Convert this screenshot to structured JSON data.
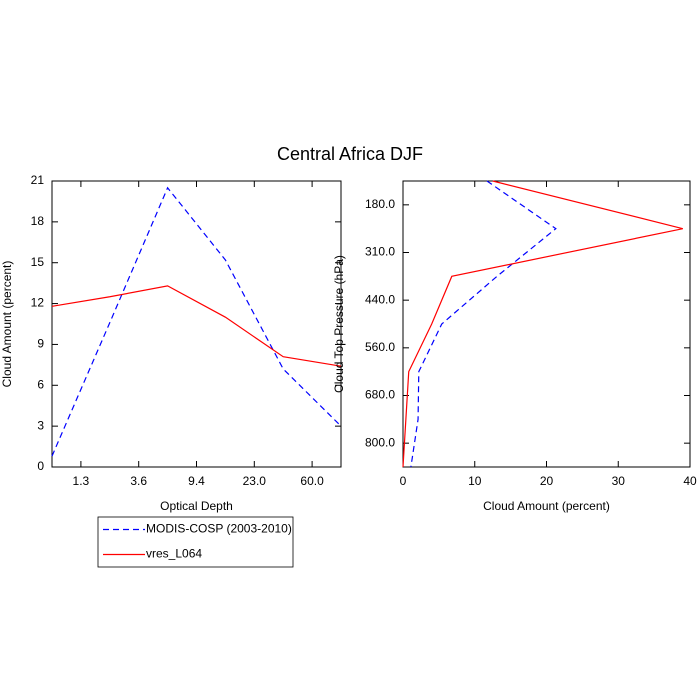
{
  "title": "Central Africa DJF",
  "chart_data": [
    {
      "type": "line",
      "orientation": "vertical",
      "x_label": "Optical Depth",
      "y_label": "Cloud Amount (percent)",
      "x": [
        0,
        1,
        2,
        3,
        4,
        5
      ],
      "xlim": [
        0,
        5
      ],
      "xticks": [
        {
          "value": 0.5,
          "label": "1.3"
        },
        {
          "value": 1.5,
          "label": "3.6"
        },
        {
          "value": 2.5,
          "label": "9.4"
        },
        {
          "value": 3.5,
          "label": "23.0"
        },
        {
          "value": 4.5,
          "label": "60.0"
        }
      ],
      "ylim": [
        0,
        21
      ],
      "yticks": [
        0,
        3,
        6,
        9,
        12,
        15,
        18,
        21
      ],
      "series": [
        {
          "name": "MODIS-COSP (2003-2010)",
          "color": "#0000ff",
          "line_style": "dashed",
          "values": [
            0.8,
            10.6,
            20.5,
            15.2,
            7.2,
            3.0
          ]
        },
        {
          "name": "vres_L064",
          "color": "#ff0000",
          "line_style": "solid",
          "values": [
            11.8,
            12.5,
            13.3,
            11.0,
            8.1,
            7.4
          ]
        }
      ]
    },
    {
      "type": "line",
      "orientation": "horizontal",
      "x_label": "Cloud Amount (percent)",
      "y_label": "Cloud Top Pressure (hPa)",
      "levels": [
        0,
        1,
        2,
        3,
        4,
        5,
        6
      ],
      "xlim": [
        0,
        40
      ],
      "xticks": [
        0,
        10,
        20,
        30,
        40
      ],
      "ylim": [
        0,
        6
      ],
      "y_reversed": true,
      "yticks": [
        {
          "value": 0.5,
          "label": "180.0"
        },
        {
          "value": 1.5,
          "label": "310.0"
        },
        {
          "value": 2.5,
          "label": "440.0"
        },
        {
          "value": 3.5,
          "label": "560.0"
        },
        {
          "value": 4.5,
          "label": "680.0"
        },
        {
          "value": 5.5,
          "label": "800.0"
        }
      ],
      "series": [
        {
          "color": "#0000ff",
          "line_style": "dashed",
          "values": [
            11.7,
            21.3,
            13.1,
            5.4,
            2.2,
            2.1,
            1.1
          ]
        },
        {
          "color": "#ff0000",
          "line_style": "solid",
          "values": [
            12.5,
            39.0,
            6.8,
            4.0,
            0.8,
            0.4,
            0.0
          ]
        }
      ]
    }
  ]
}
